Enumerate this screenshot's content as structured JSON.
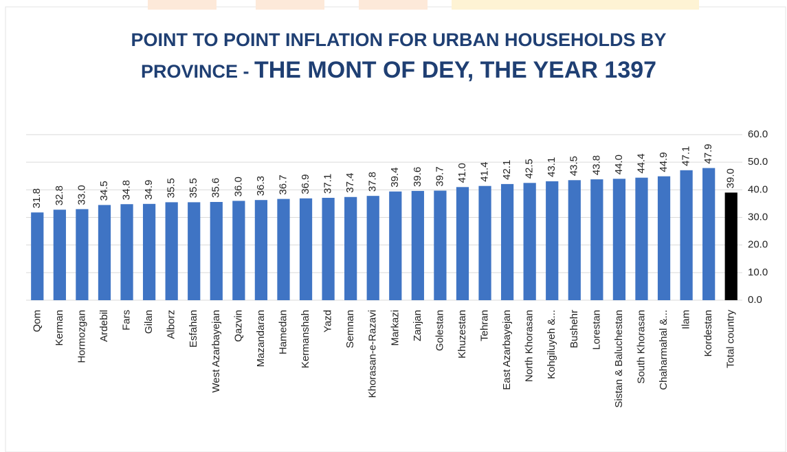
{
  "chart_data": {
    "type": "bar",
    "title": "POINT TO POINT INFLATION FOR URBAN HOUSEHOLDS BY PROVINCE -",
    "subtitle": "THE MONT OF DEY, THE YEAR  1397",
    "categories": [
      "Qom",
      "Kerman",
      "Hormozgan",
      "Ardebil",
      "Fars",
      "Gilan",
      "Alborz",
      "Esfahan",
      "West Azarbayejan",
      "Qazvin",
      "Mazandaran",
      "Hamedan",
      "Kermanshah",
      "Yazd",
      "Semnan",
      "Khorasan-e-Razavi",
      "Markazi",
      "Zanjan",
      "Golestan",
      "Khuzestan",
      "Tehran",
      "East Azarbayejan",
      "North Khorasan",
      "Kohgiluyeh &...",
      "Bushehr",
      "Lorestan",
      "Sistan & Baluchestan",
      "South Khorasan",
      "Chaharmahal &...",
      "Ilam",
      "Kordestan",
      "Total country"
    ],
    "values": [
      31.8,
      32.8,
      33.0,
      34.5,
      34.8,
      34.9,
      35.5,
      35.5,
      35.6,
      36.0,
      36.3,
      36.7,
      36.9,
      37.1,
      37.4,
      37.8,
      39.4,
      39.6,
      39.7,
      41.0,
      41.4,
      42.1,
      42.5,
      43.1,
      43.5,
      43.8,
      44.0,
      44.4,
      44.9,
      47.1,
      47.9,
      39.0
    ],
    "value_labels": [
      "31.8",
      "32.8",
      "33.0",
      "34.5",
      "34.8",
      "34.9",
      "35.5",
      "35.5",
      "35.6",
      "36.0",
      "36.3",
      "36.7",
      "36.9",
      "37.1",
      "37.4",
      "37.8",
      "39.4",
      "39.6",
      "39.7",
      "41.0",
      "41.4",
      "42.1",
      "42.5",
      "43.1",
      "43.5",
      "43.8",
      "44.0",
      "44.4",
      "44.9",
      "47.1",
      "47.9",
      "39.0"
    ],
    "colors": [
      "#3f74c4",
      "#3f74c4",
      "#3f74c4",
      "#3f74c4",
      "#3f74c4",
      "#3f74c4",
      "#3f74c4",
      "#3f74c4",
      "#3f74c4",
      "#3f74c4",
      "#3f74c4",
      "#3f74c4",
      "#3f74c4",
      "#3f74c4",
      "#3f74c4",
      "#3f74c4",
      "#3f74c4",
      "#3f74c4",
      "#3f74c4",
      "#3f74c4",
      "#3f74c4",
      "#3f74c4",
      "#3f74c4",
      "#3f74c4",
      "#3f74c4",
      "#3f74c4",
      "#3f74c4",
      "#3f74c4",
      "#3f74c4",
      "#3f74c4",
      "#3f74c4",
      "#000000"
    ],
    "ylim": [
      0,
      60
    ],
    "yticks": [
      {
        "value": 0,
        "label": "0.0"
      },
      {
        "value": 10,
        "label": "10.0"
      },
      {
        "value": 20,
        "label": "20.0"
      },
      {
        "value": 30,
        "label": "30.0"
      },
      {
        "value": 40,
        "label": "40.0"
      },
      {
        "value": 50,
        "label": "50.0"
      },
      {
        "value": 60,
        "label": "60.0"
      }
    ],
    "grid": true,
    "y_axis_side": "right"
  }
}
